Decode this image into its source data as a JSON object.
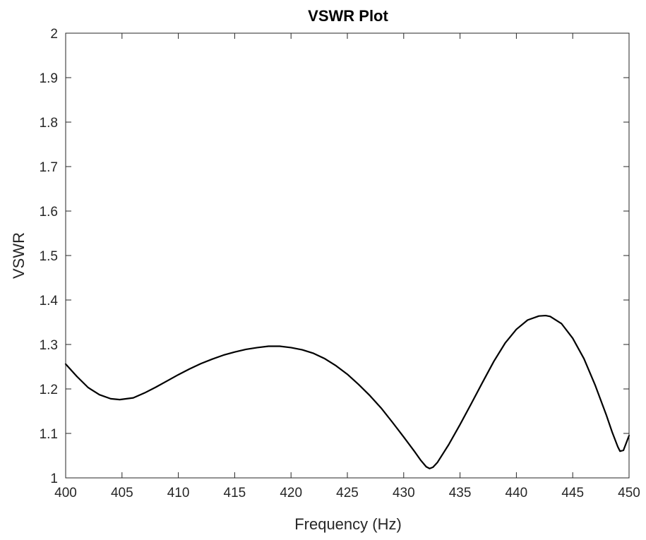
{
  "chart_data": {
    "type": "line",
    "title": "VSWR Plot",
    "xlabel": "Frequency (Hz)",
    "ylabel": "VSWR",
    "xlim": [
      400,
      450
    ],
    "ylim": [
      1,
      2
    ],
    "x_ticks": [
      400,
      405,
      410,
      415,
      420,
      425,
      430,
      435,
      440,
      445,
      450
    ],
    "y_ticks": [
      1,
      1.1,
      1.2,
      1.3,
      1.4,
      1.5,
      1.6,
      1.7,
      1.8,
      1.9,
      2
    ],
    "x_tick_labels": [
      "400",
      "405",
      "410",
      "415",
      "420",
      "425",
      "430",
      "435",
      "440",
      "445",
      "450"
    ],
    "y_tick_labels": [
      "1",
      "1.1",
      "1.2",
      "1.3",
      "1.4",
      "1.5",
      "1.6",
      "1.7",
      "1.8",
      "1.9",
      "2"
    ],
    "grid": false,
    "series": [
      {
        "color": "#000000",
        "x": [
          400,
          401,
          402,
          403,
          404,
          404.8,
          406,
          407,
          408,
          409,
          410,
          411,
          412,
          413,
          414,
          415,
          416,
          417,
          418,
          418.5,
          419,
          420,
          421,
          422,
          423,
          424,
          425,
          426,
          427,
          428,
          429,
          430,
          431,
          431.5,
          432,
          432.3,
          432.6,
          433,
          434,
          435,
          436,
          437,
          438,
          439,
          440,
          441,
          442,
          442.6,
          443,
          444,
          445,
          446,
          447,
          448,
          448.5,
          449,
          449.2,
          449.5,
          450
        ],
        "y": [
          1.256,
          1.228,
          1.203,
          1.187,
          1.178,
          1.176,
          1.18,
          1.191,
          1.204,
          1.218,
          1.232,
          1.245,
          1.257,
          1.267,
          1.276,
          1.283,
          1.289,
          1.293,
          1.296,
          1.296,
          1.296,
          1.293,
          1.288,
          1.28,
          1.268,
          1.252,
          1.233,
          1.21,
          1.185,
          1.157,
          1.125,
          1.092,
          1.058,
          1.04,
          1.025,
          1.021,
          1.024,
          1.035,
          1.075,
          1.12,
          1.167,
          1.215,
          1.262,
          1.303,
          1.334,
          1.355,
          1.364,
          1.365,
          1.363,
          1.347,
          1.314,
          1.268,
          1.208,
          1.14,
          1.103,
          1.07,
          1.06,
          1.062,
          1.095
        ]
      }
    ]
  }
}
